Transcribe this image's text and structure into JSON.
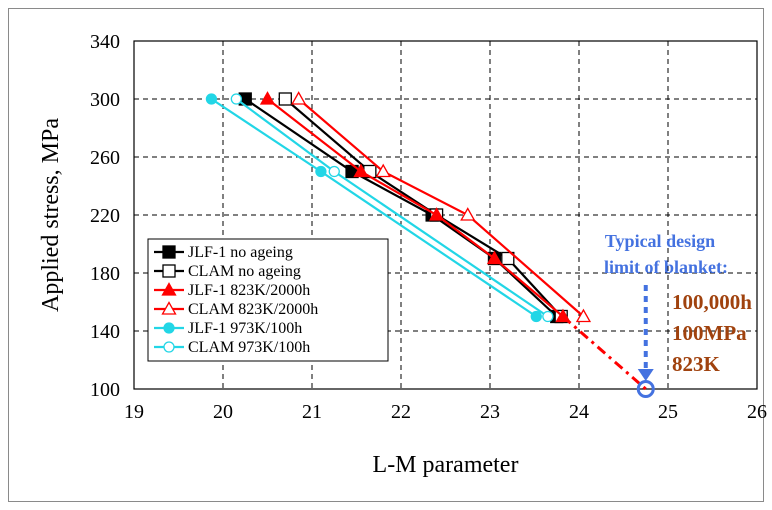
{
  "chart_data": {
    "type": "line",
    "xlabel": "L-M parameter",
    "ylabel": "Applied stress, MPa",
    "xlim": [
      19,
      26
    ],
    "ylim": [
      100,
      340
    ],
    "xticks": [
      19,
      20,
      21,
      22,
      23,
      24,
      25,
      26
    ],
    "yticks": [
      100,
      140,
      180,
      220,
      260,
      300,
      340
    ],
    "grid": true,
    "legend_position": "lower-left",
    "series": [
      {
        "name": "JLF-1   no ageing",
        "color": "#000000",
        "marker": "square-filled",
        "points": [
          [
            20.25,
            300
          ],
          [
            21.45,
            250
          ],
          [
            22.35,
            220
          ],
          [
            23.05,
            190
          ],
          [
            23.75,
            150
          ]
        ]
      },
      {
        "name": "CLAM no ageing",
        "color": "#000000",
        "marker": "square-open",
        "points": [
          [
            20.7,
            300
          ],
          [
            21.65,
            250
          ],
          [
            22.4,
            220
          ],
          [
            23.2,
            190
          ],
          [
            23.8,
            150
          ]
        ]
      },
      {
        "name": "JLF-1   823K/2000h",
        "color": "#ff0000",
        "marker": "triangle-filled",
        "points": [
          [
            20.5,
            300
          ],
          [
            21.55,
            250
          ],
          [
            22.4,
            220
          ],
          [
            23.05,
            190
          ],
          [
            23.82,
            150
          ]
        ]
      },
      {
        "name": "CLAM 823K/2000h",
        "color": "#ff0000",
        "marker": "triangle-open",
        "points": [
          [
            20.85,
            300
          ],
          [
            21.8,
            250
          ],
          [
            22.75,
            220
          ],
          [
            24.05,
            150
          ]
        ]
      },
      {
        "name": "JLF-1   973K/100h",
        "color": "#22d6e6",
        "marker": "circle-filled",
        "points": [
          [
            19.87,
            300
          ],
          [
            21.1,
            250
          ],
          [
            23.52,
            150
          ]
        ]
      },
      {
        "name": "CLAM 973K/100h",
        "color": "#22d6e6",
        "marker": "circle-open",
        "points": [
          [
            20.15,
            300
          ],
          [
            21.25,
            250
          ],
          [
            23.65,
            150
          ]
        ]
      }
    ],
    "extrapolation": {
      "color": "#ff0000",
      "points": [
        [
          23.82,
          150
        ],
        [
          24.75,
          100
        ]
      ]
    },
    "design_point": {
      "x": 24.75,
      "y": 100,
      "color": "#4472e0"
    },
    "annotations": {
      "typical_line1": "Typical design",
      "typical_line2": "limit of blanket:",
      "hours": "100,000h",
      "stress": "100MPa",
      "temp": "823K"
    }
  }
}
